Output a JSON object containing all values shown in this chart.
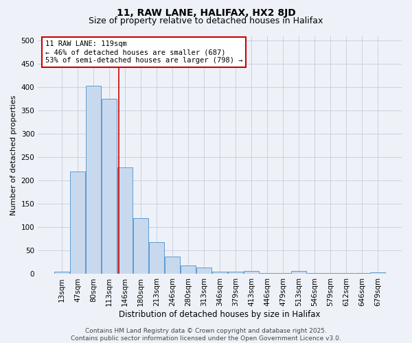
{
  "title1": "11, RAW LANE, HALIFAX, HX2 8JD",
  "title2": "Size of property relative to detached houses in Halifax",
  "xlabel": "Distribution of detached houses by size in Halifax",
  "ylabel": "Number of detached properties",
  "categories": [
    "13sqm",
    "47sqm",
    "80sqm",
    "113sqm",
    "146sqm",
    "180sqm",
    "213sqm",
    "246sqm",
    "280sqm",
    "313sqm",
    "346sqm",
    "379sqm",
    "413sqm",
    "446sqm",
    "479sqm",
    "513sqm",
    "546sqm",
    "579sqm",
    "612sqm",
    "646sqm",
    "679sqm"
  ],
  "values": [
    5,
    220,
    403,
    375,
    228,
    120,
    68,
    38,
    18,
    14,
    5,
    5,
    7,
    2,
    2,
    7,
    2,
    2,
    2,
    2,
    3
  ],
  "bar_color": "#c8d9ed",
  "bar_edge_color": "#5b9bd5",
  "grid_color": "#c8d0e0",
  "background_color": "#eef2f8",
  "red_line_x": 3.62,
  "annotation_line1": "11 RAW LANE: 119sqm",
  "annotation_line2": "← 46% of detached houses are smaller (687)",
  "annotation_line3": "53% of semi-detached houses are larger (798) →",
  "annotation_box_color": "#ffffff",
  "annotation_box_edge": "#cc0000",
  "red_line_color": "#cc0000",
  "footer_text": "Contains HM Land Registry data © Crown copyright and database right 2025.\nContains public sector information licensed under the Open Government Licence v3.0.",
  "ylim": [
    0,
    510
  ],
  "title1_fontsize": 10,
  "title2_fontsize": 9,
  "xlabel_fontsize": 8.5,
  "ylabel_fontsize": 8,
  "tick_fontsize": 7.5,
  "annot_fontsize": 7.5,
  "footer_fontsize": 6.5
}
